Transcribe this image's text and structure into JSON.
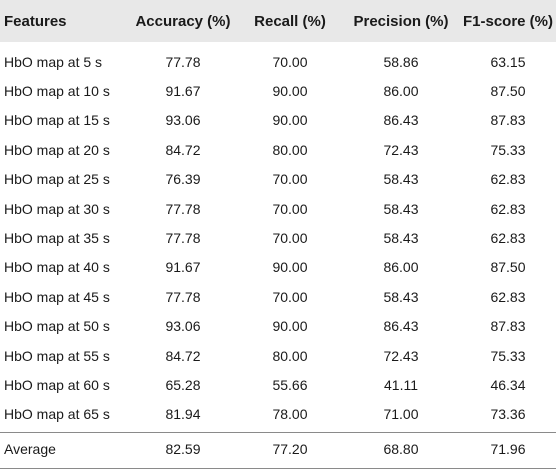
{
  "table": {
    "columns": [
      "Features",
      "Accuracy (%)",
      "Recall (%)",
      "Precision (%)",
      "F1-score (%)"
    ],
    "rows": [
      [
        "HbO map at 5 s",
        "77.78",
        "70.00",
        "58.86",
        "63.15"
      ],
      [
        "HbO map at 10 s",
        "91.67",
        "90.00",
        "86.00",
        "87.50"
      ],
      [
        "HbO map at 15 s",
        "93.06",
        "90.00",
        "86.43",
        "87.83"
      ],
      [
        "HbO map at 20 s",
        "84.72",
        "80.00",
        "72.43",
        "75.33"
      ],
      [
        "HbO map at 25 s",
        "76.39",
        "70.00",
        "58.43",
        "62.83"
      ],
      [
        "HbO map at 30 s",
        "77.78",
        "70.00",
        "58.43",
        "62.83"
      ],
      [
        "HbO map at 35 s",
        "77.78",
        "70.00",
        "58.43",
        "62.83"
      ],
      [
        "HbO map at 40 s",
        "91.67",
        "90.00",
        "86.00",
        "87.50"
      ],
      [
        "HbO map at 45 s",
        "77.78",
        "70.00",
        "58.43",
        "62.83"
      ],
      [
        "HbO map at 50 s",
        "93.06",
        "90.00",
        "86.43",
        "87.83"
      ],
      [
        "HbO map at 55 s",
        "84.72",
        "80.00",
        "72.43",
        "75.33"
      ],
      [
        "HbO map at 60 s",
        "65.28",
        "55.66",
        "41.11",
        "46.34"
      ],
      [
        "HbO map at 65 s",
        "81.94",
        "78.00",
        "71.00",
        "73.36"
      ]
    ],
    "average": [
      "Average",
      "82.59",
      "77.20",
      "68.80",
      "71.96"
    ]
  },
  "colors": {
    "header_bg": "#e8e8e8",
    "rule": "#8a8a8a",
    "text": "#1a1a1a"
  }
}
